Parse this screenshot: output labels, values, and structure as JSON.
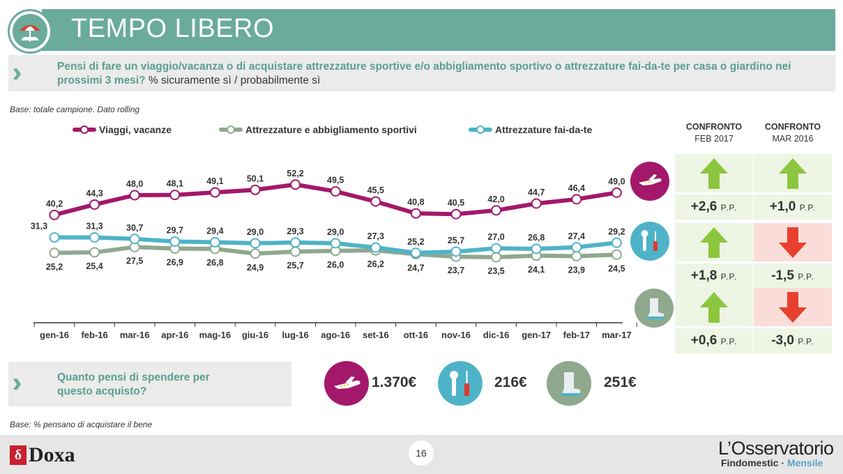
{
  "header": {
    "title": "TEMPO LIBERO"
  },
  "question": {
    "bold": "Pensi di fare un viaggio/vacanza o di acquistare attrezzature sportive e/o abbigliamento sportivo o attrezzature fai-da-te per casa o giardino nei prossimi 3 mesi?",
    "normal": "% sicuramente sì / probabilmente sì"
  },
  "base_note": "Base: totale campione. Dato rolling",
  "chart_data": {
    "type": "line",
    "categories": [
      "gen-16",
      "feb-16",
      "mar-16",
      "apr-16",
      "mag-16",
      "giu-16",
      "lug-16",
      "ago-16",
      "set-16",
      "ott-16",
      "nov-16",
      "dic-16",
      "gen-17",
      "feb-17",
      "mar-17"
    ],
    "series": [
      {
        "name": "Viaggi, vacanze",
        "color": "#a3186b",
        "values": [
          40.2,
          44.3,
          48.0,
          48.1,
          49.1,
          50.1,
          52.2,
          49.5,
          45.5,
          40.8,
          40.5,
          42.0,
          44.7,
          46.4,
          49.0
        ],
        "labels": [
          "40,2",
          "44,3",
          "48,0",
          "48,1",
          "49,1",
          "50,1",
          "52,2",
          "49,5",
          "45,5",
          "40,8",
          "40,5",
          "42,0",
          "44,7",
          "46,4",
          "49,0"
        ]
      },
      {
        "name": "Attrezzature e abbigliamento sportivi",
        "color": "#8fa88e",
        "values": [
          25.2,
          25.4,
          27.5,
          26.9,
          26.8,
          24.9,
          25.7,
          26.0,
          26.2,
          24.7,
          23.7,
          23.5,
          24.1,
          23.9,
          24.5
        ],
        "labels": [
          "25,2",
          "25,4",
          "27,5",
          "26,9",
          "26,8",
          "24,9",
          "25,7",
          "26,0",
          "26,2",
          "24,7",
          "23,7",
          "23,5",
          "24,1",
          "23,9",
          "24,5"
        ]
      },
      {
        "name": "Attrezzature fai-da-te",
        "color": "#4fb3c8",
        "values": [
          31.3,
          31.3,
          30.7,
          29.7,
          29.4,
          29.0,
          29.3,
          29.0,
          27.3,
          25.2,
          25.7,
          27.0,
          26.8,
          27.4,
          29.2
        ],
        "labels": [
          "31,3",
          "31,3",
          "30,7",
          "29,7",
          "29,4",
          "29,0",
          "29,3",
          "29,0",
          "27,3",
          "25,2",
          "25,7",
          "27,0",
          "26,8",
          "27,4",
          "29,2"
        ]
      }
    ]
  },
  "comparison": {
    "headers": [
      {
        "line1": "CONFRONTO",
        "line2": "FEB 2017"
      },
      {
        "line1": "CONFRONTO",
        "line2": "MAR 2016"
      }
    ],
    "unit": "P.P.",
    "rows": [
      {
        "icon": "airplane-icon",
        "feb": {
          "value": "+2,6",
          "dir": "up"
        },
        "mar": {
          "value": "+1,0",
          "dir": "up"
        }
      },
      {
        "icon": "tools-icon",
        "feb": {
          "value": "+1,8",
          "dir": "up"
        },
        "mar": {
          "value": "-1,5",
          "dir": "down"
        }
      },
      {
        "icon": "boot-icon",
        "feb": {
          "value": "+0,6",
          "dir": "up"
        },
        "mar": {
          "value": "-3,0",
          "dir": "down"
        }
      }
    ],
    "colors": {
      "up_bg": "#eef5e4",
      "up_arrow": "#8cc63f",
      "down_bg": "#fadcd8",
      "down_arrow": "#e8402f"
    }
  },
  "spend": {
    "question": "Quanto pensi di spendere per questo acquisto?",
    "items": [
      {
        "icon": "airplane-icon",
        "value": "1.370€"
      },
      {
        "icon": "tools-icon",
        "value": "216€"
      },
      {
        "icon": "boot-icon",
        "value": "251€"
      }
    ]
  },
  "base_note2": "Base: % pensano di acquistare il bene",
  "footer": {
    "page": "16",
    "brand": "Doxa",
    "obs_title": "L’Osservatorio",
    "obs_sub1": "Findomestic · ",
    "obs_sub2": "Mensile"
  }
}
